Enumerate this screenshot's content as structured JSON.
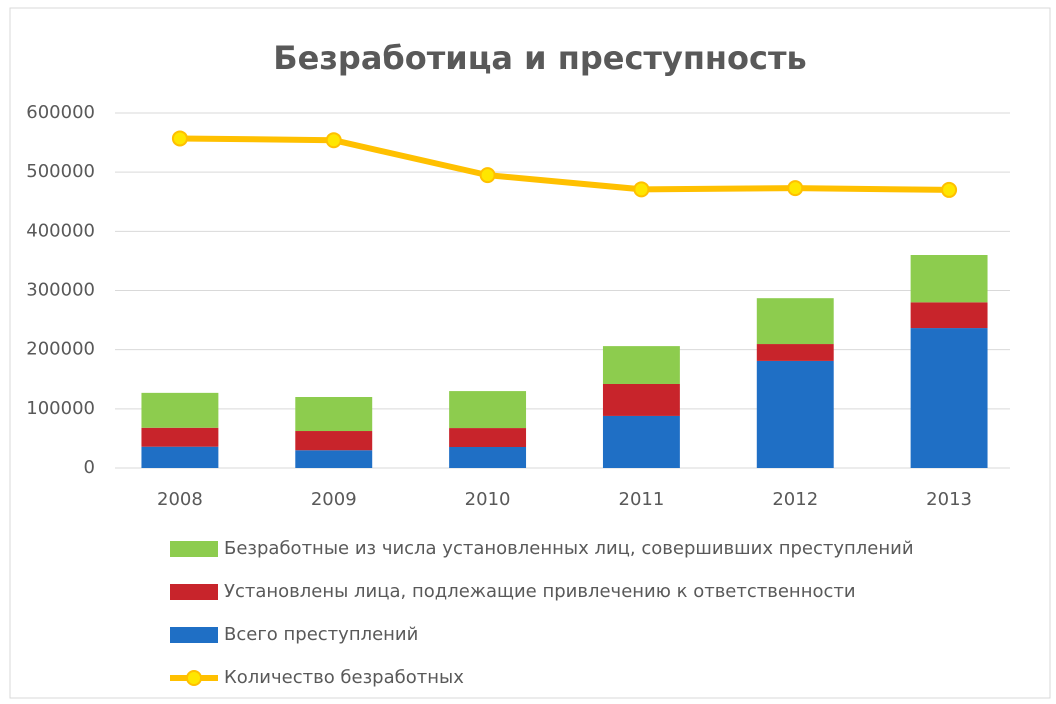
{
  "chart_data": {
    "type": "bar",
    "stacked": true,
    "title": "Безработица и преступность",
    "categories": [
      "2008",
      "2009",
      "2010",
      "2011",
      "2012",
      "2013"
    ],
    "series": [
      {
        "name": "Всего преступлений",
        "color": "#1f6fc5",
        "values": [
          36000,
          30000,
          35500,
          88000,
          181000,
          236500
        ]
      },
      {
        "name": "Установлены лица, подлежащие привлечению к ответственности",
        "color": "#c8242b",
        "values": [
          32000,
          32500,
          32000,
          54000,
          28500,
          43500
        ]
      },
      {
        "name": "Безработные из числа установленных лиц, совершивших преступлений",
        "color": "#8dcc4e",
        "values": [
          59000,
          57500,
          62500,
          64000,
          77500,
          80000
        ]
      },
      {
        "name": "Количество безработных",
        "type": "line",
        "color": "#ffc000",
        "marker_color": "#ffe600",
        "values": [
          557000,
          554000,
          495000,
          471000,
          473000,
          470000
        ]
      }
    ],
    "ylim": [
      0,
      600000
    ],
    "yticks": [
      0,
      100000,
      200000,
      300000,
      400000,
      500000,
      600000
    ],
    "grid": true
  }
}
